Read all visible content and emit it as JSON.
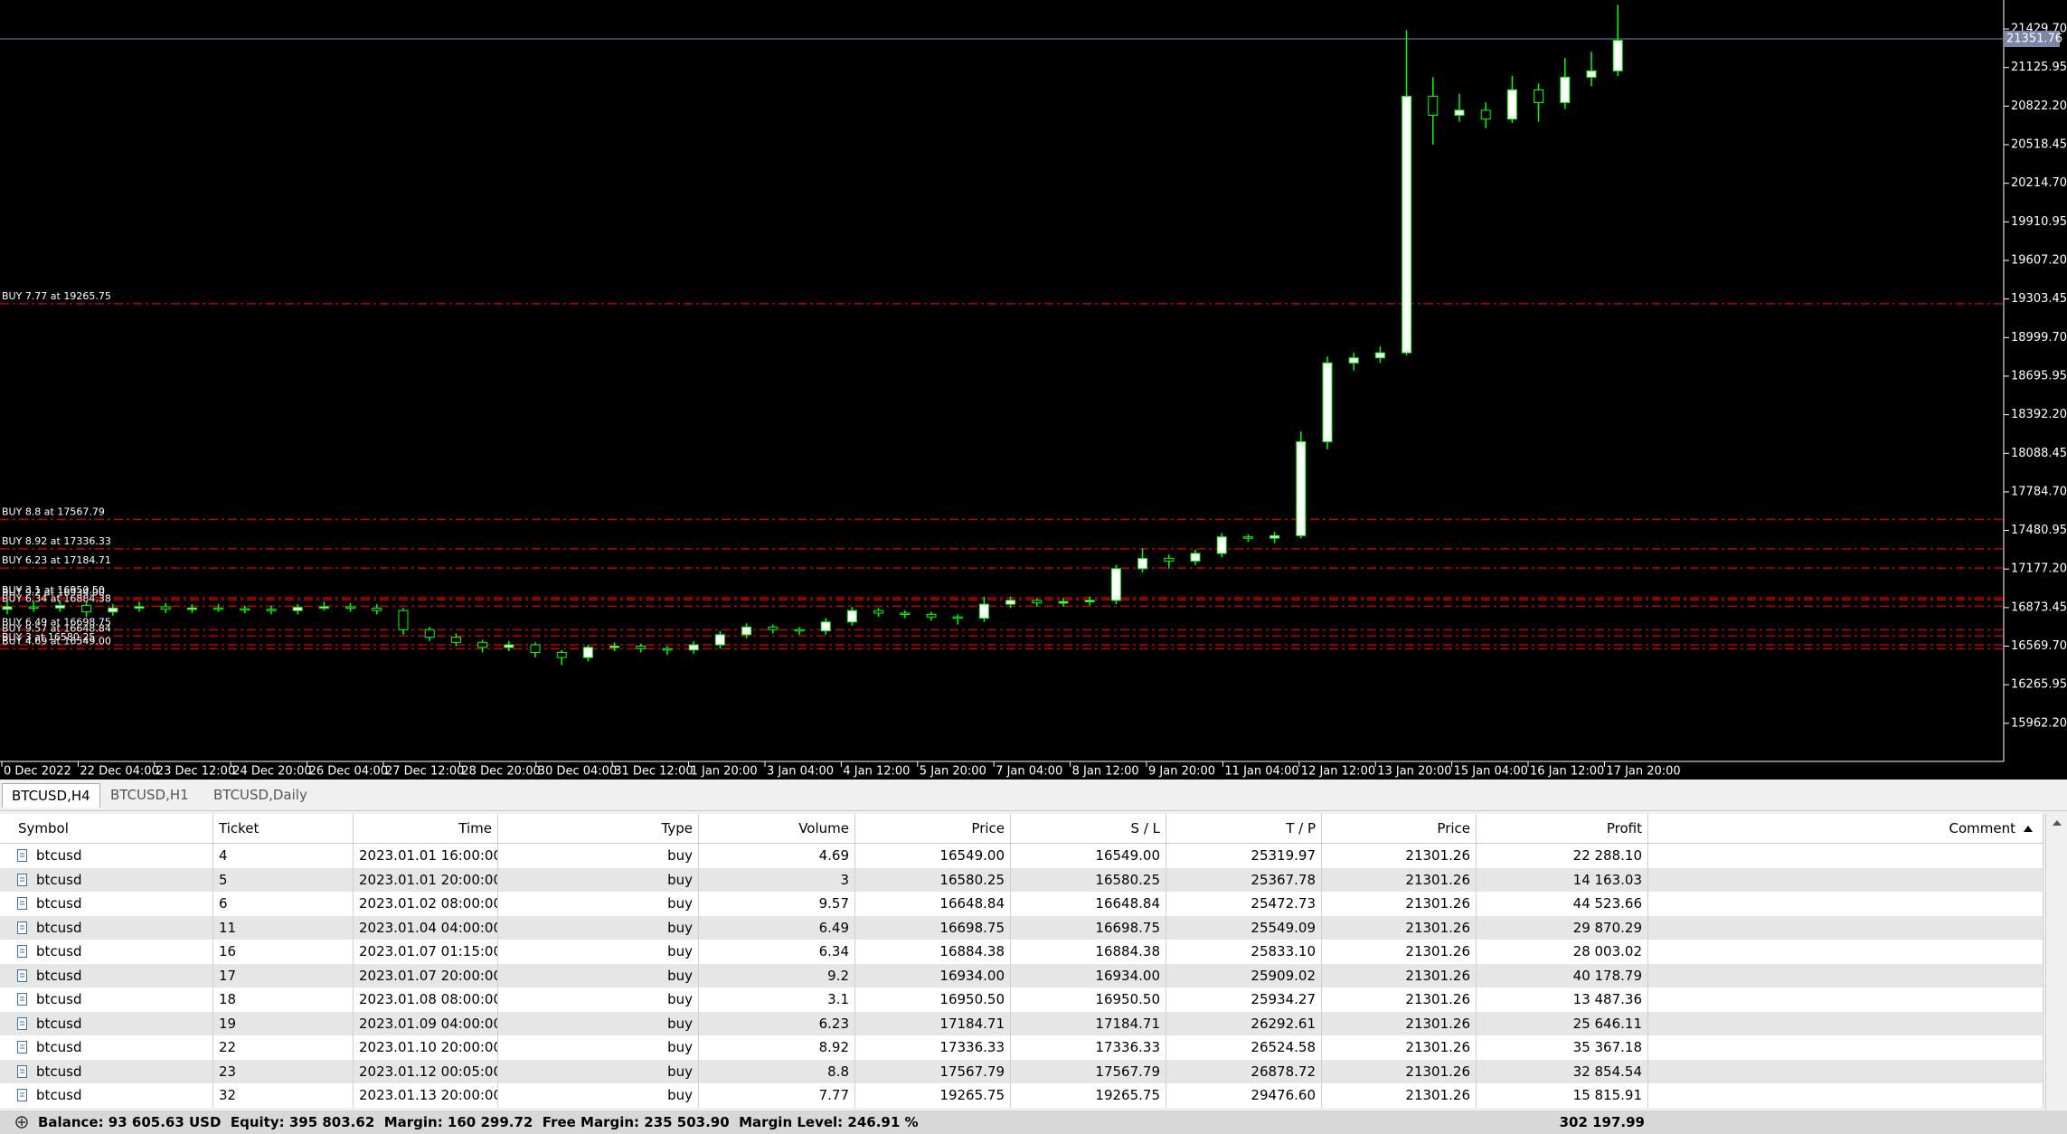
{
  "tabs": [
    "BTCUSD,H4",
    "BTCUSD,H1",
    "BTCUSD,Daily"
  ],
  "chart_data": {
    "type": "candlestick",
    "ylim": [
      15662,
      21658
    ],
    "yticks": [
      {
        "value": 21429.7,
        "label": "21429.70"
      },
      {
        "value": 21125.95,
        "label": "21125.95"
      },
      {
        "value": 20822.2,
        "label": "20822.20"
      },
      {
        "value": 20518.45,
        "label": "20518.45"
      },
      {
        "value": 20214.7,
        "label": "20214.70"
      },
      {
        "value": 19910.95,
        "label": "19910.95"
      },
      {
        "value": 19607.2,
        "label": "19607.20"
      },
      {
        "value": 19303.45,
        "label": "19303.45"
      },
      {
        "value": 18999.7,
        "label": "18999.70"
      },
      {
        "value": 18695.95,
        "label": "18695.95"
      },
      {
        "value": 18392.2,
        "label": "18392.20"
      },
      {
        "value": 18088.45,
        "label": "18088.45"
      },
      {
        "value": 17784.7,
        "label": "17784.70"
      },
      {
        "value": 17480.95,
        "label": "17480.95"
      },
      {
        "value": 17177.2,
        "label": "17177.20"
      },
      {
        "value": 16873.45,
        "label": "16873.45"
      },
      {
        "value": 16569.7,
        "label": "16569.70"
      },
      {
        "value": 16265.95,
        "label": "16265.95"
      },
      {
        "value": 15962.2,
        "label": "15962.20"
      }
    ],
    "x_labels": [
      "0 Dec 2022",
      "22 Dec 04:00",
      "23 Dec 12:00",
      "24 Dec 20:00",
      "26 Dec 04:00",
      "27 Dec 12:00",
      "28 Dec 20:00",
      "30 Dec 04:00",
      "31 Dec 12:00",
      "1 Jan 20:00",
      "3 Jan 04:00",
      "4 Jan 12:00",
      "5 Jan 20:00",
      "7 Jan 04:00",
      "8 Jan 12:00",
      "9 Jan 20:00",
      "11 Jan 04:00",
      "12 Jan 12:00",
      "13 Jan 20:00",
      "15 Jan 04:00",
      "16 Jan 12:00",
      "17 Jan 20:00"
    ],
    "open": [
      16860,
      16880,
      16870,
      16890,
      16840,
      16870,
      16880,
      16860,
      16870,
      16865,
      16860,
      16850,
      16875,
      16880,
      16870,
      16850,
      16700,
      16640,
      16600,
      16560,
      16580,
      16520,
      16480,
      16560,
      16570,
      16550,
      16540,
      16580,
      16660,
      16720,
      16700,
      16690,
      16760,
      16850,
      16830,
      16820,
      16800,
      16790,
      16900,
      16930,
      16910,
      16920,
      16930,
      17180,
      17260,
      17240,
      17300,
      17430,
      17420,
      17440,
      18180,
      18800,
      18840,
      18880,
      20900,
      20750,
      20790,
      20720,
      20950,
      20850,
      21050,
      21100
    ],
    "high": [
      16930,
      16920,
      16930,
      16920,
      16900,
      16920,
      16910,
      16900,
      16900,
      16890,
      16890,
      16900,
      16920,
      16910,
      16900,
      16870,
      16720,
      16670,
      16620,
      16610,
      16600,
      16540,
      16580,
      16600,
      16590,
      16570,
      16610,
      16690,
      16750,
      16740,
      16720,
      16790,
      16880,
      16870,
      16850,
      16840,
      16820,
      16960,
      16960,
      16950,
      16950,
      16960,
      17210,
      17340,
      17290,
      17330,
      17460,
      17450,
      17470,
      18260,
      18850,
      18880,
      18930,
      21420,
      21050,
      20920,
      20850,
      21060,
      21000,
      21200,
      21250,
      21620
    ],
    "low": [
      16820,
      16840,
      16840,
      16800,
      16810,
      16840,
      16830,
      16830,
      16840,
      16830,
      16820,
      16820,
      16850,
      16840,
      16820,
      16660,
      16610,
      16570,
      16520,
      16530,
      16480,
      16420,
      16450,
      16530,
      16520,
      16500,
      16510,
      16550,
      16630,
      16670,
      16660,
      16660,
      16730,
      16800,
      16790,
      16770,
      16740,
      16760,
      16870,
      16880,
      16880,
      16890,
      16900,
      17150,
      17180,
      17210,
      17270,
      17390,
      17380,
      17420,
      18120,
      18740,
      18800,
      18860,
      20520,
      20700,
      20650,
      20690,
      20700,
      20800,
      20980,
      21060
    ],
    "close": [
      16880,
      16870,
      16890,
      16840,
      16870,
      16880,
      16860,
      16870,
      16865,
      16860,
      16850,
      16875,
      16880,
      16870,
      16850,
      16700,
      16640,
      16600,
      16560,
      16580,
      16520,
      16480,
      16560,
      16570,
      16550,
      16540,
      16580,
      16660,
      16720,
      16700,
      16690,
      16760,
      16850,
      16830,
      16820,
      16800,
      16790,
      16900,
      16930,
      16910,
      16920,
      16930,
      17180,
      17260,
      17240,
      17300,
      17430,
      17420,
      17440,
      18180,
      18800,
      18840,
      18880,
      20900,
      20750,
      20790,
      20720,
      20950,
      20850,
      21050,
      21100,
      21340
    ],
    "up_color": "#ffffff",
    "down_color": "#000000",
    "wick_color": "#00ff00",
    "bid": {
      "value": 21351.76,
      "label": "21351.76"
    },
    "order_color": "#c00000",
    "orders": [
      {
        "label": "BUY 7.77 at 19265.75",
        "price": 19265.75
      },
      {
        "label": "BUY 8.8 at 17567.79",
        "price": 17567.79
      },
      {
        "label": "BUY 8.92 at 17336.33",
        "price": 17336.33
      },
      {
        "label": "BUY 6.23 at 17184.71",
        "price": 17184.71
      },
      {
        "label": "BUY 3.1 at 16950.50",
        "price": 16950.5
      },
      {
        "label": "BUY 9.2 at 16934.00",
        "price": 16934
      },
      {
        "label": "BUY 6.34 at 16884.38",
        "price": 16884.38
      },
      {
        "label": "BUY 6.49 at 16698.75",
        "price": 16698.75
      },
      {
        "label": "BUY 9.57 at 16648.84",
        "price": 16648.84
      },
      {
        "label": "BUY 3 at 16580.25",
        "price": 16580.25
      },
      {
        "label": "BUY 4.69 at 16549.00",
        "price": 16549
      }
    ]
  },
  "table": {
    "columns": [
      "Symbol",
      "Ticket",
      "Time",
      "Type",
      "Volume",
      "Price",
      "S / L",
      "T / P",
      "Price",
      "Profit",
      "Comment"
    ],
    "rows": [
      [
        "btcusd",
        "4",
        "2023.01.01 16:00:00",
        "buy",
        "4.69",
        "16549.00",
        "16549.00",
        "25319.97",
        "21301.26",
        "22 288.10",
        ""
      ],
      [
        "btcusd",
        "5",
        "2023.01.01 20:00:00",
        "buy",
        "3",
        "16580.25",
        "16580.25",
        "25367.78",
        "21301.26",
        "14 163.03",
        ""
      ],
      [
        "btcusd",
        "6",
        "2023.01.02 08:00:00",
        "buy",
        "9.57",
        "16648.84",
        "16648.84",
        "25472.73",
        "21301.26",
        "44 523.66",
        ""
      ],
      [
        "btcusd",
        "11",
        "2023.01.04 04:00:00",
        "buy",
        "6.49",
        "16698.75",
        "16698.75",
        "25549.09",
        "21301.26",
        "29 870.29",
        ""
      ],
      [
        "btcusd",
        "16",
        "2023.01.07 01:15:00",
        "buy",
        "6.34",
        "16884.38",
        "16884.38",
        "25833.10",
        "21301.26",
        "28 003.02",
        ""
      ],
      [
        "btcusd",
        "17",
        "2023.01.07 20:00:00",
        "buy",
        "9.2",
        "16934.00",
        "16934.00",
        "25909.02",
        "21301.26",
        "40 178.79",
        ""
      ],
      [
        "btcusd",
        "18",
        "2023.01.08 08:00:00",
        "buy",
        "3.1",
        "16950.50",
        "16950.50",
        "25934.27",
        "21301.26",
        "13 487.36",
        ""
      ],
      [
        "btcusd",
        "19",
        "2023.01.09 04:00:00",
        "buy",
        "6.23",
        "17184.71",
        "17184.71",
        "26292.61",
        "21301.26",
        "25 646.11",
        ""
      ],
      [
        "btcusd",
        "22",
        "2023.01.10 20:00:00",
        "buy",
        "8.92",
        "17336.33",
        "17336.33",
        "26524.58",
        "21301.26",
        "35 367.18",
        ""
      ],
      [
        "btcusd",
        "23",
        "2023.01.12 00:05:00",
        "buy",
        "8.8",
        "17567.79",
        "17567.79",
        "26878.72",
        "21301.26",
        "32 854.54",
        ""
      ],
      [
        "btcusd",
        "32",
        "2023.01.13 20:00:00",
        "buy",
        "7.77",
        "19265.75",
        "19265.75",
        "29476.60",
        "21301.26",
        "15 815.91",
        ""
      ]
    ]
  },
  "footer": {
    "summary": "Balance: 93 605.63 USD  Equity: 395 803.62  Margin: 160 299.72  Free Margin: 235 503.90  Margin Level: 246.91 %",
    "total": "302 197.99"
  }
}
